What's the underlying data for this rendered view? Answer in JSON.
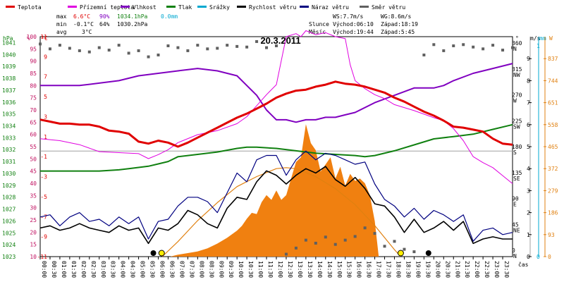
{
  "header": {
    "legend": [
      {
        "label": "Teplota",
        "color": "#e00000"
      },
      {
        "label": "Přízemní teplota",
        "color": "#e000e0"
      },
      {
        "label": "Vlhkost",
        "color": "#8000c0"
      },
      {
        "label": "Tlak",
        "color": "#108010"
      },
      {
        "label": "Srážky",
        "color": "#00a8d0"
      },
      {
        "label": "Rychlost větru",
        "color": "#000000"
      },
      {
        "label": "Náraz větru",
        "color": "#000080"
      },
      {
        "label": "Směr větru",
        "color": "#606060"
      }
    ],
    "stats": {
      "max_label": "max",
      "max_temp": "6.6°C",
      "max_hum": "90%",
      "max_press": "1034.1hPa",
      "max_rain": "0.0mm",
      "min_label": "min",
      "min_temp": "-0.1°C",
      "min_hum": "64%",
      "min_press": "1030.2hPa",
      "avg_label": "avg",
      "avg_temp": "3°C"
    },
    "wind": {
      "ws": "WS:7.7m/s",
      "wg": "WG:8.6m/s"
    },
    "sun": {
      "label": "Slunce",
      "rise": "Východ:06:10",
      "set": "Západ:18:19"
    },
    "moon": {
      "label": "Měsíc",
      "rise": "Východ:19:44",
      "set": "Západ:5:45"
    }
  },
  "chart_data": {
    "type": "line",
    "title": "20.3.2011",
    "xlabel": "čas",
    "x_ticks": [
      "00:00",
      "00:30",
      "01:00",
      "01:30",
      "02:00",
      "02:30",
      "03:00",
      "03:30",
      "04:00",
      "04:30",
      "05:00",
      "05:30",
      "06:00",
      "06:30",
      "07:00",
      "07:30",
      "08:00",
      "08:30",
      "09:00",
      "09:30",
      "10:00",
      "10:30",
      "11:00",
      "11:30",
      "12:00",
      "12:30",
      "13:00",
      "13:30",
      "14:00",
      "14:30",
      "15:00",
      "15:30",
      "16:00",
      "16:30",
      "17:00",
      "17:30",
      "18:00",
      "18:30",
      "19:00",
      "19:30",
      "20:00",
      "20:30",
      "21:00",
      "21:30",
      "22:00",
      "22:30",
      "23:00",
      "23:30"
    ],
    "axis_units": {
      "pressure": "hPa",
      "humidity": "%",
      "temperature": "°C",
      "wind_speed": "m/s",
      "rain": "mm",
      "wind_dir": "°",
      "solar": "W"
    },
    "pressure_ticks": [
      1023,
      1024,
      1025,
      1026,
      1027,
      1028,
      1029,
      1030,
      1031,
      1032,
      1033,
      1034,
      1035,
      1036,
      1037,
      1038,
      1039,
      1040,
      1041
    ],
    "humidity_ticks": [
      10,
      15,
      20,
      25,
      30,
      35,
      40,
      45,
      50,
      55,
      60,
      65,
      70,
      75,
      80,
      85,
      90,
      95,
      100
    ],
    "temperature_ticks": [
      -11,
      -9,
      -7,
      -5,
      -3,
      -1,
      1,
      3,
      5,
      7,
      9,
      11
    ],
    "wind_speed_ticks": [
      0,
      1,
      2,
      3,
      4,
      5,
      6,
      7,
      8,
      9
    ],
    "rain_ticks": [
      0
    ],
    "rain_top_tick": 1,
    "wind_dir_ticks": [
      {
        "deg": "360",
        "dir": "N"
      },
      {
        "deg": "315",
        "dir": "NW"
      },
      {
        "deg": "270",
        "dir": "W"
      },
      {
        "deg": "225",
        "dir": "SW"
      },
      {
        "deg": "180",
        "dir": "S"
      },
      {
        "deg": "135",
        "dir": "SE"
      },
      {
        "deg": "90",
        "dir": "E"
      },
      {
        "deg": "45",
        "dir": "NE"
      },
      {
        "deg": "0",
        "dir": "N"
      }
    ],
    "solar_ticks": [
      0,
      93,
      186,
      279,
      372,
      465,
      558,
      651,
      744,
      837
    ],
    "ranges": {
      "temperature": [
        -11,
        11
      ],
      "humidity": [
        10,
        100
      ],
      "pressure": [
        1023,
        1041.5
      ],
      "wind_speed": [
        0,
        10
      ],
      "wind_dir": [
        0,
        360
      ],
      "solar": [
        0,
        930
      ]
    },
    "series": [
      {
        "name": "Teplota",
        "key": "temp",
        "axis": "temperature",
        "color": "#e00000",
        "x": [
          0,
          0.5,
          1,
          1.5,
          2,
          2.5,
          3,
          3.5,
          4,
          4.5,
          5,
          5.5,
          6,
          6.5,
          7,
          7.5,
          8,
          8.5,
          9,
          9.5,
          10,
          10.5,
          11,
          11.5,
          12,
          12.5,
          13,
          13.5,
          14,
          14.5,
          15,
          15.5,
          16,
          16.5,
          17,
          17.5,
          18,
          18.5,
          19,
          19.5,
          20,
          20.5,
          21,
          21.5,
          22,
          22.5,
          23,
          23.5,
          24
        ],
        "y": [
          2.7,
          2.5,
          2.3,
          2.3,
          2.2,
          2.2,
          2,
          1.6,
          1.5,
          1.3,
          0.5,
          0.3,
          0.6,
          0.4,
          0,
          0.4,
          0.9,
          1.4,
          1.9,
          2.4,
          2.9,
          3.3,
          3.8,
          4.3,
          4.9,
          5.3,
          5.6,
          5.7,
          6,
          6.2,
          6.5,
          6.3,
          6.2,
          6,
          5.7,
          5.4,
          4.9,
          4.5,
          4,
          3.5,
          3.1,
          2.6,
          2,
          1.9,
          1.7,
          1.5,
          0.8,
          0.3,
          0.2
        ]
      },
      {
        "name": "Přízemní teplota",
        "key": "ground",
        "axis": "temperature",
        "color": "#e000e0",
        "x": [
          0,
          1,
          2,
          3,
          4,
          5,
          5.5,
          6,
          6.5,
          7,
          8,
          9,
          10,
          10.5,
          11,
          11.5,
          12,
          12.25,
          12.5,
          13,
          13.25,
          13.5,
          14,
          14.5,
          15,
          15.5,
          15.75,
          16,
          16.5,
          17,
          17.5,
          18,
          19,
          20,
          20.5,
          21,
          21.5,
          22,
          22.5,
          23,
          23.5,
          24
        ],
        "y": [
          0.8,
          0.6,
          0.2,
          -0.5,
          -0.6,
          -0.7,
          -1.2,
          -0.8,
          -0.3,
          0.4,
          1.2,
          1.6,
          2.3,
          3,
          4.1,
          5.2,
          6.2,
          8.6,
          11,
          11.3,
          11,
          11.6,
          11.2,
          11.4,
          11,
          10.8,
          8.2,
          6.6,
          5.8,
          5.2,
          4.8,
          4.2,
          3.6,
          2.9,
          2.6,
          1.8,
          0.6,
          -1,
          -1.6,
          -2.1,
          -2.9,
          -3.7
        ]
      },
      {
        "name": "Vlhkost",
        "key": "hum",
        "axis": "humidity",
        "color": "#8000c0",
        "x": [
          0,
          1,
          2,
          3,
          4,
          5,
          6,
          7,
          8,
          9,
          10,
          10.5,
          11,
          11.5,
          12,
          12.5,
          13,
          13.5,
          14,
          14.5,
          15,
          15.5,
          16,
          17,
          18,
          19,
          19.5,
          20,
          20.5,
          21,
          22,
          23,
          24
        ],
        "y": [
          80,
          80,
          80,
          81,
          82,
          84,
          85,
          86,
          87,
          86,
          84,
          80,
          76,
          70,
          66,
          66,
          65,
          66,
          66,
          67,
          67,
          68,
          69,
          73,
          76,
          79,
          79,
          79,
          80,
          82,
          85,
          87,
          89
        ]
      },
      {
        "name": "Tlak",
        "key": "press",
        "axis": "pressure",
        "color": "#108010",
        "x": [
          0,
          1,
          2,
          3,
          4,
          4.5,
          5,
          5.5,
          6,
          6.5,
          7,
          8,
          9,
          10,
          10.5,
          11,
          12,
          13,
          14,
          15,
          16,
          16.5,
          17,
          18,
          19,
          20,
          21,
          22,
          23,
          24
        ],
        "y": [
          1030.2,
          1030.2,
          1030.2,
          1030.2,
          1030.3,
          1030.4,
          1030.5,
          1030.6,
          1030.8,
          1031,
          1031.4,
          1031.6,
          1031.8,
          1032.1,
          1032.2,
          1032.2,
          1032.1,
          1031.9,
          1031.7,
          1031.6,
          1031.5,
          1031.4,
          1031.5,
          1031.9,
          1032.4,
          1032.9,
          1033.1,
          1033.3,
          1033.7,
          1034.1
        ]
      },
      {
        "name": "Rychlost větru",
        "key": "wind",
        "axis": "wind_speed",
        "color": "#000000",
        "x": [
          0,
          0.5,
          1,
          1.5,
          2,
          2.5,
          3,
          3.5,
          4,
          4.5,
          5,
          5.5,
          6,
          6.5,
          7,
          7.5,
          8,
          8.5,
          9,
          9.5,
          10,
          10.5,
          11,
          11.5,
          12,
          12.5,
          13,
          13.5,
          14,
          14.5,
          15,
          15.5,
          16,
          16.5,
          17,
          17.5,
          18,
          18.5,
          19,
          19.5,
          20,
          20.5,
          21,
          21.5,
          22,
          22.5,
          23,
          23.5,
          24
        ],
        "y": [
          1.3,
          1.4,
          1.2,
          1.3,
          1.5,
          1.3,
          1.2,
          1.1,
          1.4,
          1.2,
          1.3,
          0.6,
          1.3,
          1.2,
          1.5,
          2.1,
          1.9,
          1.5,
          1.3,
          2.2,
          2.7,
          2.6,
          3.4,
          3.9,
          3.7,
          3.3,
          3.7,
          4,
          3.8,
          4.1,
          3.5,
          3.2,
          3.6,
          3.1,
          2.4,
          2.3,
          1.8,
          1.1,
          1.7,
          1.1,
          1.3,
          1.6,
          1.2,
          1.6,
          0.6,
          0.8,
          0.9,
          0.8,
          0.8
        ]
      },
      {
        "name": "Náraz větru",
        "key": "gust",
        "axis": "wind_speed",
        "color": "#000080",
        "x": [
          0,
          0.5,
          1,
          1.5,
          2,
          2.5,
          3,
          3.5,
          4,
          4.5,
          5,
          5.5,
          6,
          6.5,
          7,
          7.5,
          8,
          8.5,
          9,
          9.5,
          10,
          10.5,
          11,
          11.5,
          12,
          12.5,
          13,
          13.5,
          14,
          14.5,
          15,
          15.5,
          16,
          16.5,
          17,
          17.5,
          18,
          18.5,
          19,
          19.5,
          20,
          20.5,
          21,
          21.5,
          22,
          22.5,
          23,
          23.5,
          24
        ],
        "y": [
          1.8,
          1.9,
          1.4,
          1.8,
          2,
          1.6,
          1.7,
          1.4,
          1.8,
          1.5,
          1.8,
          0.8,
          1.6,
          1.7,
          2.3,
          2.7,
          2.7,
          2.5,
          2,
          2.9,
          3.8,
          3.4,
          4.4,
          4.6,
          4.6,
          3.7,
          4.4,
          4.8,
          4.4,
          4.7,
          4.6,
          4.4,
          4.2,
          4.3,
          3.3,
          2.6,
          2.3,
          1.8,
          2.2,
          1.7,
          2.1,
          1.9,
          1.6,
          1.9,
          0.7,
          1.2,
          1.3,
          1,
          1.1
        ]
      },
      {
        "name": "Směr větru",
        "key": "dir",
        "axis": "wind_dir",
        "color": "#606060",
        "x": [
          0,
          0.5,
          1,
          1.5,
          2,
          2.5,
          3,
          3.5,
          4,
          4.5,
          5,
          5.5,
          6,
          6.5,
          7,
          7.5,
          8,
          8.5,
          9,
          9.5,
          10,
          10.5,
          11,
          11.5,
          12,
          12.5,
          13,
          13.5,
          14,
          14.5,
          15,
          15.5,
          16,
          16.5,
          17,
          17.5,
          18,
          18.5,
          19,
          19.5,
          20,
          20.5,
          21,
          21.5,
          22,
          22.5,
          23,
          23.5,
          24
        ],
        "y": [
          348,
          340,
          346,
          341,
          337,
          335,
          342,
          338,
          346,
          333,
          337,
          327,
          330,
          345,
          342,
          337,
          346,
          340,
          341,
          346,
          344,
          343,
          352,
          342,
          345,
          4,
          14,
          27,
          22,
          32,
          20,
          27,
          33,
          47,
          38,
          17,
          25,
          12,
          8,
          330,
          347,
          337,
          345,
          347,
          343,
          340,
          346,
          338,
          342
        ]
      },
      {
        "name": "solar",
        "key": "solar",
        "axis": "solar",
        "color": "#f08010",
        "x": [
          6.6,
          7,
          7.5,
          8,
          8.5,
          9,
          9.5,
          10,
          10.25,
          10.5,
          10.75,
          11,
          11.25,
          11.5,
          11.75,
          12,
          12.25,
          12.5,
          12.75,
          13,
          13.25,
          13.5,
          13.75,
          14,
          14.25,
          14.5,
          14.75,
          15,
          15.25,
          15.5,
          15.75,
          16,
          16.25,
          16.5,
          16.75,
          17,
          17.2
        ],
        "y": [
          0,
          8,
          15,
          22,
          35,
          55,
          80,
          110,
          130,
          160,
          185,
          180,
          230,
          260,
          240,
          280,
          240,
          260,
          330,
          400,
          420,
          560,
          480,
          450,
          360,
          390,
          420,
          330,
          380,
          300,
          350,
          320,
          330,
          310,
          260,
          150,
          0
        ]
      },
      {
        "name": "sun_curve",
        "key": "sun",
        "axis": "temperature",
        "color": "#e08010",
        "x": [
          6.2,
          7,
          8,
          9,
          10,
          11,
          12,
          12.5,
          13,
          14,
          15,
          16,
          17,
          18,
          18.32
        ],
        "y": [
          -11,
          -9.5,
          -7.4,
          -5.6,
          -4,
          -3,
          -2.2,
          -2.1,
          -2.2,
          -3,
          -4.2,
          -5.8,
          -7.9,
          -10.3,
          -11
        ]
      }
    ],
    "markers": [
      {
        "kind": "moon",
        "x": 5.75
      },
      {
        "kind": "sun",
        "x": 6.17
      },
      {
        "kind": "sun",
        "x": 18.32
      },
      {
        "kind": "moon",
        "x": 19.73
      }
    ]
  }
}
